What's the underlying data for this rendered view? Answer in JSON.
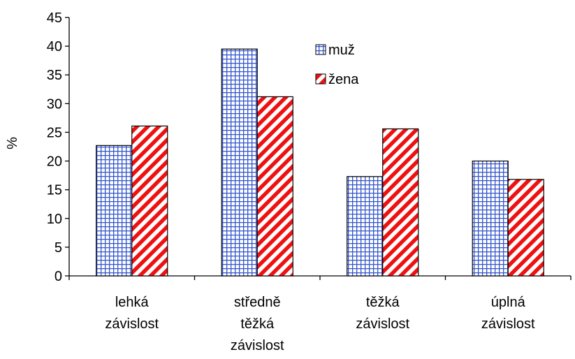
{
  "chart_data": {
    "type": "bar",
    "title": "",
    "xlabel": "",
    "ylabel": "%",
    "ylim": [
      0,
      45
    ],
    "yticks": [
      0,
      5,
      10,
      15,
      20,
      25,
      30,
      35,
      40,
      45
    ],
    "grid": false,
    "legend_position": "top-right",
    "categories": [
      [
        "lehká",
        "závislost"
      ],
      [
        "středně",
        "těžká",
        "závislost"
      ],
      [
        "těžká",
        "závislost"
      ],
      [
        "úplná",
        "závislost"
      ]
    ],
    "series": [
      {
        "name": "muž",
        "values": [
          22.7,
          39.5,
          17.3,
          20.0
        ],
        "pattern": "grid",
        "color": "#3355cc",
        "background": "#ffffff"
      },
      {
        "name": "žena",
        "values": [
          26.1,
          31.2,
          25.6,
          16.8
        ],
        "pattern": "diagonal",
        "color": "#ee1111",
        "background": "#ffffff"
      }
    ]
  }
}
